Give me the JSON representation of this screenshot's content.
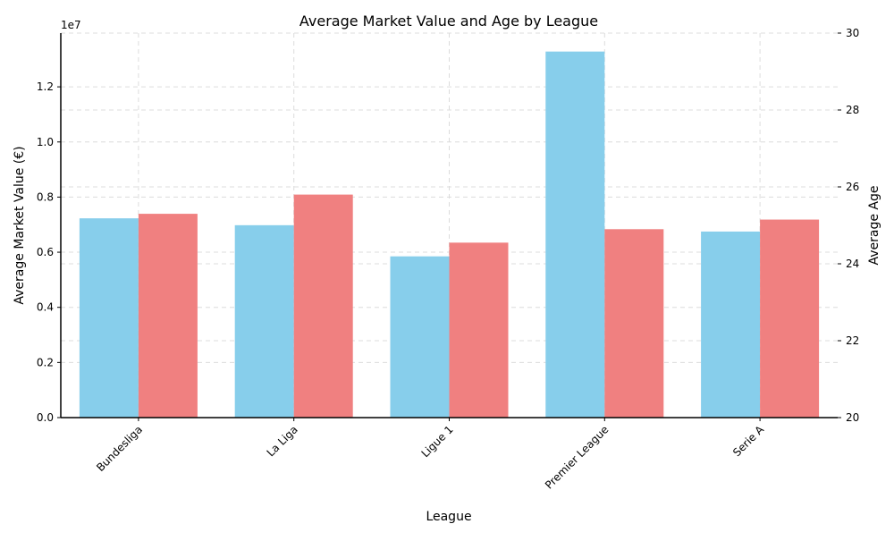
{
  "chart_data": {
    "type": "bar",
    "title": "Average Market Value and Age by League",
    "xlabel": "League",
    "ylabel_left": "Average Market Value (€)",
    "ylabel_right": "Average Age",
    "left_axis_multiplier": "1e7",
    "categories": [
      "Bundesliga",
      "La Liga",
      "Ligue 1",
      "Premier League",
      "Serie A"
    ],
    "series": [
      {
        "axis": "left",
        "color": "#87CEEB",
        "values": [
          7230000,
          6980000,
          5850000,
          13280000,
          6750000
        ]
      },
      {
        "axis": "right",
        "color": "#F08080",
        "values": [
          25.3,
          25.8,
          24.55,
          24.9,
          25.15
        ]
      }
    ],
    "ylim_left": [
      0,
      13950000
    ],
    "ylim_right": [
      20,
      30
    ],
    "yticks_left": [
      "0.0",
      "0.2",
      "0.4",
      "0.6",
      "0.8",
      "1.0",
      "1.2"
    ],
    "yticks_right": [
      "20",
      "22",
      "24",
      "26",
      "28",
      "30"
    ],
    "grid": true,
    "legend": "none"
  }
}
